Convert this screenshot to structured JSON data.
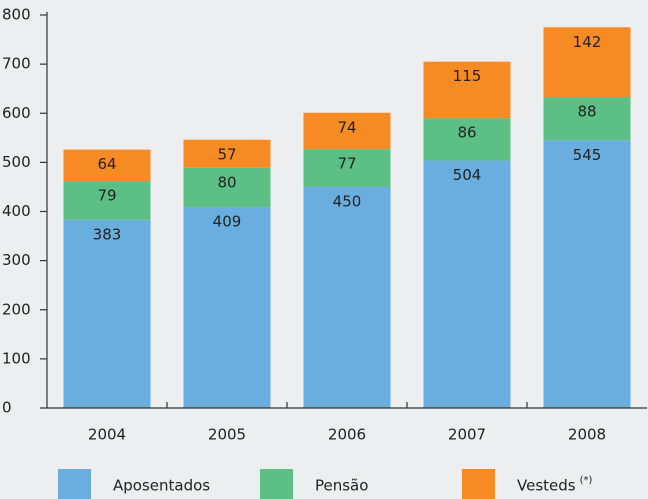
{
  "chart_data": {
    "type": "stacked_bar",
    "categories": [
      "2004",
      "2005",
      "2006",
      "2007",
      "2008"
    ],
    "series": [
      {
        "name": "Aposentados",
        "color": "#6aaee0",
        "values": [
          383,
          409,
          450,
          504,
          545
        ]
      },
      {
        "name": "Pensão",
        "color": "#5cbf85",
        "values": [
          79,
          80,
          77,
          86,
          88
        ]
      },
      {
        "name": "Vesteds",
        "footnote_mark": "(*)",
        "color": "#f68b24",
        "values": [
          64,
          57,
          74,
          115,
          142
        ]
      }
    ],
    "ylim": [
      0,
      800
    ],
    "yticks": [
      0,
      100,
      200,
      300,
      400,
      500,
      600,
      700,
      800
    ]
  }
}
